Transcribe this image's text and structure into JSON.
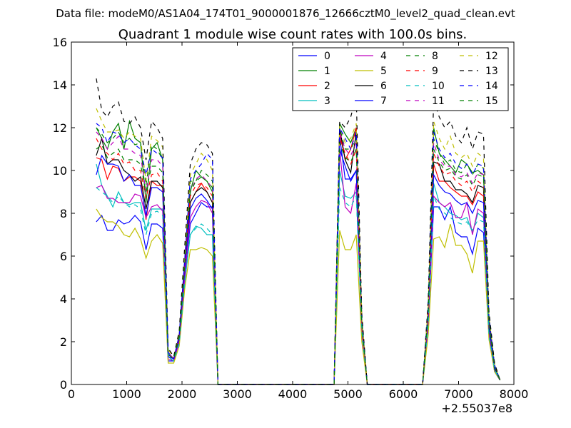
{
  "chart_data": {
    "type": "line",
    "suptitle": "Data file: modeM0/AS1A04_174T01_9000001876_12666cztM0_level2_quad_clean.evt",
    "title": "Quadrant 1 module wise count rates with 100.0s bins.",
    "xlabel": "",
    "ylabel": "",
    "x_offset_label": "+2.55037e8",
    "xlim": [
      0,
      8000
    ],
    "ylim": [
      0,
      16
    ],
    "xticks": [
      0,
      1000,
      2000,
      3000,
      4000,
      5000,
      6000,
      7000,
      8000
    ],
    "yticks": [
      0,
      2,
      4,
      6,
      8,
      10,
      12,
      14,
      16
    ],
    "xtick_labels": [
      "0",
      "1000",
      "2000",
      "3000",
      "4000",
      "5000",
      "6000",
      "7000",
      "8000"
    ],
    "ytick_labels": [
      "0",
      "2",
      "4",
      "6",
      "8",
      "10",
      "12",
      "14",
      "16"
    ],
    "legend_position": "top-right",
    "x": [
      450,
      550,
      650,
      750,
      850,
      950,
      1050,
      1150,
      1250,
      1350,
      1450,
      1550,
      1650,
      1750,
      1850,
      1950,
      2050,
      2150,
      2250,
      2350,
      2450,
      2550,
      2650,
      2750,
      4750,
      4850,
      4950,
      5050,
      5150,
      5250,
      5350,
      5450,
      6350,
      6450,
      6550,
      6650,
      6750,
      6850,
      6950,
      7050,
      7150,
      7250,
      7350,
      7450,
      7550,
      7650,
      7750
    ],
    "series": [
      {
        "name": "0",
        "color": "#0000ff",
        "dash": "solid",
        "values": [
          7.6,
          7.9,
          7.2,
          7.2,
          7.7,
          7.5,
          7.6,
          7.9,
          7.6,
          6.3,
          7.5,
          7.5,
          7.3,
          1.1,
          1.1,
          2.0,
          5.0,
          7.5,
          8.0,
          8.5,
          8.3,
          8.3,
          0,
          0,
          0,
          11.6,
          9.6,
          9.6,
          10.0,
          2.4,
          0,
          0,
          0,
          2.8,
          8.3,
          8.3,
          7.7,
          8.3,
          7.1,
          6.9,
          6.9,
          6.1,
          7.3,
          7.1,
          2.3,
          0.6,
          0.2
        ]
      },
      {
        "name": "1",
        "color": "#008000",
        "dash": "solid",
        "values": [
          12.0,
          11.5,
          11.0,
          11.8,
          12.2,
          11.0,
          12.3,
          11.5,
          11.3,
          8.5,
          11.0,
          11.3,
          10.5,
          1.5,
          1.2,
          2.3,
          5.8,
          9.0,
          10.0,
          9.7,
          9.5,
          9.0,
          0,
          0,
          0,
          12.2,
          11.7,
          11.3,
          12.0,
          3.0,
          0,
          0,
          0,
          3.5,
          12.0,
          10.8,
          10.5,
          10.2,
          9.9,
          10.5,
          10.3,
          9.9,
          10.0,
          9.8,
          3.0,
          0.9,
          0.2
        ]
      },
      {
        "name": "2",
        "color": "#ff0000",
        "dash": "solid",
        "values": [
          10.6,
          10.5,
          9.6,
          10.2,
          10.1,
          9.5,
          9.7,
          9.7,
          9.5,
          7.7,
          9.5,
          9.3,
          9.3,
          1.4,
          1.2,
          2.2,
          5.6,
          8.5,
          9.0,
          9.4,
          9.0,
          8.5,
          0,
          0,
          0,
          11.8,
          10.5,
          11.0,
          12.0,
          3.0,
          0,
          0,
          0,
          3.3,
          10.3,
          9.5,
          9.5,
          9.2,
          9.0,
          8.8,
          8.8,
          8.4,
          9.0,
          8.8,
          2.6,
          0.8,
          0.2
        ]
      },
      {
        "name": "3",
        "color": "#00bfbf",
        "dash": "solid",
        "values": [
          10.3,
          9.3,
          8.8,
          8.3,
          9.0,
          8.5,
          8.4,
          8.5,
          8.5,
          7.2,
          8.2,
          8.2,
          8.2,
          1.3,
          1.1,
          2.0,
          4.8,
          7.0,
          7.4,
          7.3,
          7.0,
          7.0,
          0,
          0,
          0,
          10.0,
          8.8,
          8.7,
          9.0,
          2.6,
          0,
          0,
          0,
          2.9,
          9.4,
          8.5,
          8.3,
          8.0,
          7.9,
          7.7,
          7.8,
          7.1,
          8.0,
          7.8,
          2.4,
          0.7,
          0.2
        ]
      },
      {
        "name": "4",
        "color": "#bf00bf",
        "dash": "solid",
        "values": [
          9.2,
          9.3,
          8.7,
          8.7,
          8.5,
          8.5,
          8.5,
          8.9,
          8.8,
          7.8,
          8.3,
          8.4,
          8.1,
          1.2,
          1.1,
          2.0,
          5.0,
          7.8,
          8.3,
          8.6,
          8.5,
          8.0,
          0,
          0,
          0,
          11.0,
          8.3,
          8.0,
          9.4,
          2.5,
          0,
          0,
          0,
          2.8,
          8.8,
          8.5,
          8.3,
          8.5,
          7.8,
          7.8,
          8.5,
          7.0,
          8.2,
          8.0,
          2.4,
          0.7,
          0.2
        ]
      },
      {
        "name": "5",
        "color": "#bfbf00",
        "dash": "solid",
        "values": [
          8.2,
          7.8,
          7.6,
          7.6,
          7.4,
          7.0,
          6.9,
          7.3,
          6.8,
          5.9,
          6.7,
          7.0,
          6.6,
          1.0,
          1.0,
          1.8,
          4.5,
          6.3,
          6.3,
          6.4,
          6.3,
          6.0,
          0,
          0,
          0,
          7.2,
          6.3,
          6.3,
          7.0,
          2.0,
          0,
          0,
          0,
          2.3,
          6.8,
          6.9,
          6.4,
          7.5,
          6.5,
          6.5,
          6.1,
          5.2,
          6.7,
          6.7,
          2.1,
          0.6,
          0.2
        ]
      },
      {
        "name": "6",
        "color": "#000000",
        "dash": "solid",
        "values": [
          10.7,
          11.5,
          10.3,
          10.5,
          10.5,
          10.0,
          9.8,
          9.5,
          9.7,
          8.2,
          9.5,
          9.5,
          9.2,
          1.4,
          1.2,
          2.2,
          5.6,
          8.5,
          9.0,
          9.2,
          9.0,
          8.5,
          0,
          0,
          0,
          12.0,
          10.5,
          9.9,
          11.8,
          2.9,
          0,
          0,
          0,
          3.3,
          10.4,
          10.3,
          9.5,
          9.5,
          9.1,
          9.1,
          8.9,
          8.5,
          9.3,
          9.2,
          2.8,
          0.8,
          0.2
        ]
      },
      {
        "name": "7",
        "color": "#0000ff",
        "dash": "solid",
        "values": [
          9.8,
          10.7,
          10.3,
          10.3,
          10.2,
          9.5,
          9.8,
          9.3,
          9.3,
          7.9,
          9.2,
          9.2,
          9.0,
          1.3,
          1.2,
          2.1,
          5.4,
          8.2,
          8.7,
          8.9,
          8.6,
          8.2,
          0,
          0,
          0,
          11.0,
          10.2,
          9.5,
          10.0,
          2.8,
          0,
          0,
          0,
          3.1,
          9.8,
          9.3,
          9.0,
          8.9,
          8.6,
          8.4,
          8.5,
          8.0,
          8.6,
          8.5,
          2.6,
          0.7,
          0.2
        ]
      },
      {
        "name": "8",
        "color": "#008000",
        "dash": "dashed",
        "values": [
          12.0,
          11.7,
          11.3,
          11.5,
          11.8,
          11.3,
          11.5,
          11.2,
          11.3,
          9.3,
          11.2,
          11.0,
          10.5,
          1.5,
          1.2,
          2.3,
          5.8,
          9.5,
          9.5,
          10.0,
          9.8,
          9.5,
          0,
          0,
          0,
          12.0,
          11.0,
          11.0,
          11.5,
          3.0,
          0,
          0,
          0,
          3.5,
          11.5,
          10.8,
          10.3,
          10.5,
          10.0,
          9.9,
          10.3,
          9.8,
          10.3,
          10.1,
          3.0,
          0.9,
          0.2
        ]
      },
      {
        "name": "9",
        "color": "#ff0000",
        "dash": "dashed",
        "values": [
          11.5,
          11.0,
          10.8,
          10.5,
          10.8,
          10.3,
          10.4,
          10.0,
          10.0,
          8.7,
          9.8,
          9.9,
          9.5,
          1.5,
          1.2,
          2.2,
          5.7,
          8.8,
          9.3,
          9.4,
          9.2,
          8.8,
          0,
          0,
          0,
          11.5,
          10.8,
          10.3,
          11.0,
          2.9,
          0,
          0,
          0,
          3.4,
          10.8,
          10.2,
          9.8,
          9.9,
          9.5,
          9.3,
          9.5,
          9.0,
          9.5,
          9.3,
          2.8,
          0.8,
          0.2
        ]
      },
      {
        "name": "10",
        "color": "#00bfbf",
        "dash": "dashed",
        "values": [
          9.2,
          9.0,
          8.8,
          8.5,
          8.8,
          8.5,
          8.3,
          8.4,
          8.2,
          7.0,
          8.0,
          8.1,
          7.9,
          1.3,
          1.1,
          1.9,
          4.8,
          7.0,
          7.3,
          7.5,
          7.3,
          7.0,
          0,
          0,
          0,
          9.2,
          8.5,
          8.3,
          8.8,
          2.5,
          0,
          0,
          0,
          2.8,
          8.8,
          8.2,
          8.0,
          7.8,
          7.6,
          7.5,
          7.6,
          7.2,
          7.7,
          7.6,
          2.3,
          0.7,
          0.2
        ]
      },
      {
        "name": "11",
        "color": "#bf00bf",
        "dash": "dashed",
        "values": [
          11.8,
          11.5,
          11.0,
          11.3,
          11.6,
          11.0,
          11.0,
          10.8,
          10.7,
          9.0,
          10.5,
          10.5,
          10.2,
          1.5,
          1.2,
          2.2,
          5.7,
          9.0,
          9.6,
          9.8,
          9.5,
          9.2,
          0,
          0,
          0,
          11.8,
          11.0,
          10.7,
          11.3,
          3.0,
          0,
          0,
          0,
          3.4,
          11.3,
          10.5,
          10.2,
          10.2,
          9.8,
          9.7,
          9.9,
          9.4,
          9.9,
          9.8,
          2.9,
          0.8,
          0.2
        ]
      },
      {
        "name": "12",
        "color": "#bfbf00",
        "dash": "dashed",
        "values": [
          12.9,
          12.3,
          11.8,
          11.8,
          11.9,
          11.5,
          11.8,
          11.6,
          11.5,
          9.5,
          11.6,
          11.4,
          11.1,
          1.6,
          1.3,
          2.4,
          6.2,
          9.8,
          10.3,
          10.8,
          10.5,
          10.0,
          0,
          0,
          0,
          12.1,
          11.3,
          11.5,
          12.2,
          3.1,
          0,
          0,
          0,
          3.7,
          12.3,
          11.5,
          11.0,
          11.6,
          10.8,
          10.6,
          10.8,
          10.2,
          10.8,
          10.6,
          3.2,
          0.9,
          0.2
        ]
      },
      {
        "name": "13",
        "color": "#000000",
        "dash": "dashed",
        "values": [
          14.3,
          12.8,
          12.5,
          13.0,
          13.2,
          12.3,
          12.2,
          12.5,
          12.0,
          10.5,
          12.3,
          12.0,
          11.5,
          1.7,
          1.3,
          2.5,
          6.5,
          10.3,
          11.0,
          11.3,
          11.2,
          10.8,
          0,
          0,
          0,
          12.3,
          12.0,
          12.5,
          13.5,
          3.3,
          0,
          0,
          0,
          3.9,
          13.3,
          12.5,
          12.0,
          12.3,
          11.6,
          11.3,
          12.0,
          11.0,
          11.8,
          11.7,
          3.4,
          1.0,
          0.2
        ]
      },
      {
        "name": "14",
        "color": "#0000ff",
        "dash": "dashed",
        "values": [
          12.2,
          12.0,
          11.3,
          11.8,
          11.7,
          11.3,
          11.5,
          11.2,
          11.0,
          9.8,
          11.0,
          10.8,
          10.6,
          1.5,
          1.2,
          2.3,
          5.9,
          9.6,
          10.0,
          10.3,
          10.8,
          10.5,
          0,
          0,
          0,
          12.0,
          11.5,
          11.0,
          11.8,
          3.0,
          0,
          0,
          0,
          3.6,
          11.8,
          11.0,
          10.6,
          10.8,
          10.3,
          10.1,
          10.3,
          9.8,
          10.3,
          10.2,
          3.1,
          0.9,
          0.2
        ]
      },
      {
        "name": "15",
        "color": "#008000",
        "dash": "dashed",
        "values": [
          11.0,
          11.2,
          10.6,
          10.8,
          11.0,
          10.5,
          10.5,
          10.5,
          10.3,
          9.0,
          10.2,
          10.2,
          9.9,
          1.4,
          1.2,
          2.2,
          5.6,
          9.0,
          9.5,
          9.7,
          9.5,
          9.2,
          0,
          0,
          0,
          11.3,
          10.6,
          10.4,
          11.0,
          2.9,
          0,
          0,
          0,
          3.4,
          11.0,
          10.4,
          10.0,
          10.1,
          9.7,
          9.6,
          9.8,
          9.3,
          9.8,
          9.7,
          2.9,
          0.8,
          0.2
        ]
      }
    ]
  }
}
